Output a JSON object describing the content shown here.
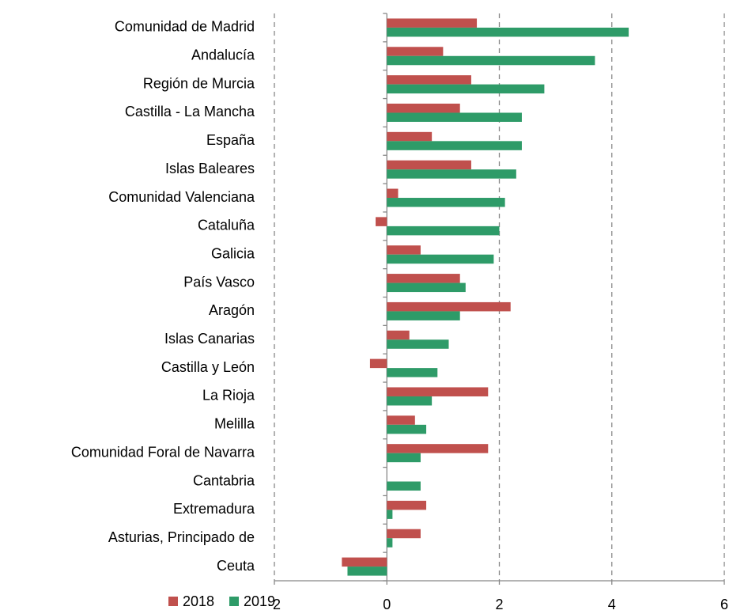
{
  "chart_data": {
    "type": "bar",
    "orientation": "horizontal",
    "categories": [
      "Comunidad de Madrid",
      "Andalucía",
      "Región de Murcia",
      "Castilla - La Mancha",
      "España",
      "Islas Baleares",
      "Comunidad Valenciana",
      "Cataluña",
      "Galicia",
      "País Vasco",
      "Aragón",
      "Islas Canarias",
      "Castilla y León",
      "La Rioja",
      "Melilla",
      "Comunidad Foral de Navarra",
      "Cantabria",
      "Extremadura",
      "Asturias, Principado de",
      "Ceuta"
    ],
    "series": [
      {
        "name": "2018",
        "color": "#c0504d",
        "values": [
          1.6,
          1.0,
          1.5,
          1.3,
          0.8,
          1.5,
          0.2,
          -0.2,
          0.6,
          1.3,
          2.2,
          0.4,
          -0.3,
          1.8,
          0.5,
          1.8,
          0,
          0.7,
          0.6,
          -0.8
        ]
      },
      {
        "name": "2019",
        "color": "#2e9b68",
        "values": [
          4.3,
          3.7,
          2.8,
          2.4,
          2.4,
          2.3,
          2.1,
          2.0,
          1.9,
          1.4,
          1.3,
          1.1,
          0.9,
          0.8,
          0.7,
          0.6,
          0.6,
          0.1,
          0.1,
          -0.7
        ]
      }
    ],
    "xlim": [
      -2,
      6
    ],
    "xticks": [
      -2,
      0,
      2,
      4,
      6
    ],
    "grid": true,
    "legend": "bottom-left"
  }
}
